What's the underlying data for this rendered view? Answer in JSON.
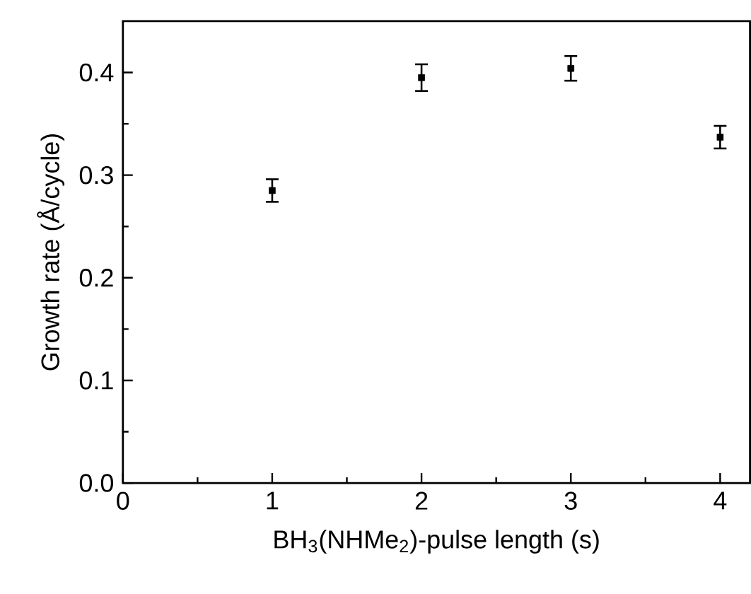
{
  "chart_data": {
    "type": "scatter",
    "xlabel": "BH$_{3}$(NHMe$_{2}$)-pulse length (s)",
    "ylabel": "Growth rate (Å/cycle)",
    "x": [
      1,
      2,
      3,
      4
    ],
    "values": [
      0.285,
      0.395,
      0.404,
      0.337
    ],
    "errors": [
      0.011,
      0.013,
      0.012,
      0.011
    ],
    "color": "#000000",
    "marker": "square",
    "xlim": [
      0,
      4.2
    ],
    "ylim": [
      0,
      0.45
    ],
    "xticks": [
      0,
      1,
      2,
      3,
      4
    ],
    "yticks": [
      {
        "value": 0,
        "label": "0.0"
      },
      0.1,
      0.2,
      0.3,
      0.4
    ]
  }
}
